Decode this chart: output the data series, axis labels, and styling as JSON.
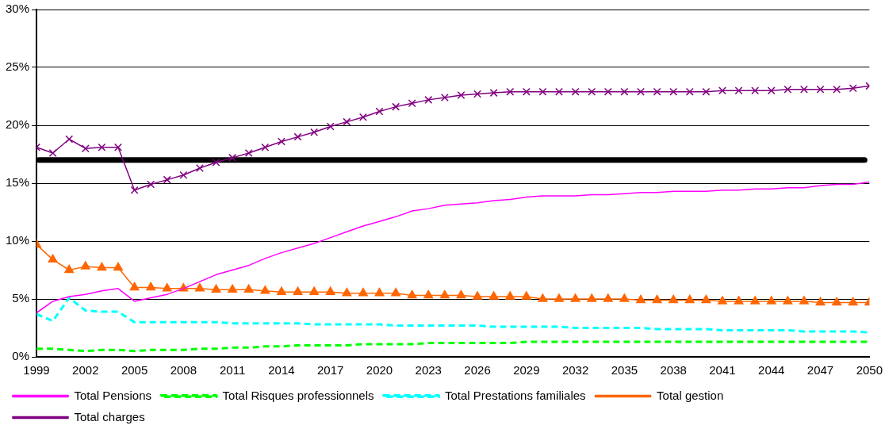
{
  "chart_data": {
    "type": "line",
    "x": [
      1999,
      2000,
      2001,
      2002,
      2003,
      2004,
      2005,
      2006,
      2007,
      2008,
      2009,
      2010,
      2011,
      2012,
      2013,
      2014,
      2015,
      2016,
      2017,
      2018,
      2019,
      2020,
      2021,
      2022,
      2023,
      2024,
      2025,
      2026,
      2027,
      2028,
      2029,
      2030,
      2031,
      2032,
      2033,
      2034,
      2035,
      2036,
      2037,
      2038,
      2039,
      2040,
      2041,
      2042,
      2043,
      2044,
      2045,
      2046,
      2047,
      2048,
      2049,
      2050
    ],
    "series": [
      {
        "name": "Total Pensions",
        "color": "#ff00ff",
        "line_style": "solid",
        "marker": "none",
        "values": [
          3.8,
          4.8,
          5.2,
          5.4,
          5.7,
          5.9,
          4.8,
          5.1,
          5.4,
          5.9,
          6.5,
          7.1,
          7.5,
          7.9,
          8.5,
          9.0,
          9.4,
          9.8,
          10.3,
          10.8,
          11.3,
          11.7,
          12.1,
          12.6,
          12.8,
          13.1,
          13.2,
          13.3,
          13.5,
          13.6,
          13.8,
          13.9,
          13.9,
          13.9,
          14.0,
          14.0,
          14.1,
          14.2,
          14.2,
          14.3,
          14.3,
          14.3,
          14.4,
          14.4,
          14.5,
          14.5,
          14.6,
          14.6,
          14.8,
          14.9,
          14.9,
          15.1
        ]
      },
      {
        "name": "Total Risques professionnels",
        "color": "#00ff00",
        "line_style": "dashed",
        "marker": "none",
        "values": [
          0.7,
          0.7,
          0.6,
          0.5,
          0.6,
          0.6,
          0.5,
          0.6,
          0.6,
          0.6,
          0.7,
          0.7,
          0.8,
          0.8,
          0.9,
          0.9,
          1.0,
          1.0,
          1.0,
          1.0,
          1.1,
          1.1,
          1.1,
          1.1,
          1.2,
          1.2,
          1.2,
          1.2,
          1.2,
          1.2,
          1.3,
          1.3,
          1.3,
          1.3,
          1.3,
          1.3,
          1.3,
          1.3,
          1.3,
          1.3,
          1.3,
          1.3,
          1.3,
          1.3,
          1.3,
          1.3,
          1.3,
          1.3,
          1.3,
          1.3,
          1.3,
          1.3
        ]
      },
      {
        "name": "Total Prestations familiales",
        "color": "#00ffff",
        "line_style": "dashed",
        "marker": "none",
        "values": [
          3.7,
          3.1,
          5.1,
          4.0,
          3.9,
          3.9,
          3.0,
          3.0,
          3.0,
          3.0,
          3.0,
          3.0,
          2.9,
          2.9,
          2.9,
          2.9,
          2.9,
          2.8,
          2.8,
          2.8,
          2.8,
          2.8,
          2.7,
          2.7,
          2.7,
          2.7,
          2.7,
          2.7,
          2.6,
          2.6,
          2.6,
          2.6,
          2.6,
          2.5,
          2.5,
          2.5,
          2.5,
          2.5,
          2.4,
          2.4,
          2.4,
          2.4,
          2.3,
          2.3,
          2.3,
          2.3,
          2.3,
          2.2,
          2.2,
          2.2,
          2.2,
          2.1
        ]
      },
      {
        "name": "Total gestion",
        "color": "#ff6600",
        "line_style": "solid",
        "marker": "triangle",
        "values": [
          9.7,
          8.4,
          7.5,
          7.8,
          7.7,
          7.7,
          6.0,
          6.0,
          5.9,
          5.9,
          5.9,
          5.8,
          5.8,
          5.8,
          5.7,
          5.6,
          5.6,
          5.6,
          5.6,
          5.5,
          5.5,
          5.5,
          5.5,
          5.3,
          5.3,
          5.3,
          5.3,
          5.2,
          5.2,
          5.2,
          5.2,
          5.0,
          5.0,
          5.0,
          5.0,
          5.0,
          5.0,
          4.9,
          4.9,
          4.9,
          4.9,
          4.9,
          4.8,
          4.8,
          4.8,
          4.8,
          4.8,
          4.8,
          4.7,
          4.7,
          4.7,
          4.7
        ]
      },
      {
        "name": "Total charges",
        "color": "#800080",
        "line_style": "solid",
        "marker": "cross",
        "values": [
          18.1,
          17.6,
          18.8,
          18.0,
          18.1,
          18.1,
          14.4,
          14.9,
          15.3,
          15.7,
          16.3,
          16.8,
          17.2,
          17.6,
          18.1,
          18.6,
          19.0,
          19.4,
          19.9,
          20.3,
          20.7,
          21.2,
          21.6,
          21.9,
          22.2,
          22.4,
          22.6,
          22.7,
          22.8,
          22.9,
          22.9,
          22.9,
          22.9,
          22.9,
          22.9,
          22.9,
          22.9,
          22.9,
          22.9,
          22.9,
          22.9,
          22.9,
          23.0,
          23.0,
          23.0,
          23.0,
          23.1,
          23.1,
          23.1,
          23.1,
          23.2,
          23.4
        ]
      }
    ],
    "ref_lines": [
      {
        "axis": "y",
        "value": 17,
        "color": "#000000",
        "line_style": "solid"
      }
    ],
    "xlim": [
      1999,
      2050
    ],
    "xticks": [
      1999,
      2002,
      2005,
      2008,
      2011,
      2014,
      2017,
      2020,
      2023,
      2026,
      2029,
      2032,
      2035,
      2038,
      2041,
      2044,
      2047,
      2050
    ],
    "ylim": [
      0,
      30
    ],
    "yticks": [
      {
        "value": 0,
        "label": "0%"
      },
      {
        "value": 5,
        "label": "5%"
      },
      {
        "value": 10,
        "label": "10%"
      },
      {
        "value": 15,
        "label": "15%"
      },
      {
        "value": 20,
        "label": "20%"
      },
      {
        "value": 25,
        "label": "25%"
      },
      {
        "value": 30,
        "label": "30%"
      }
    ],
    "grid": "y",
    "legend": "bottom"
  }
}
